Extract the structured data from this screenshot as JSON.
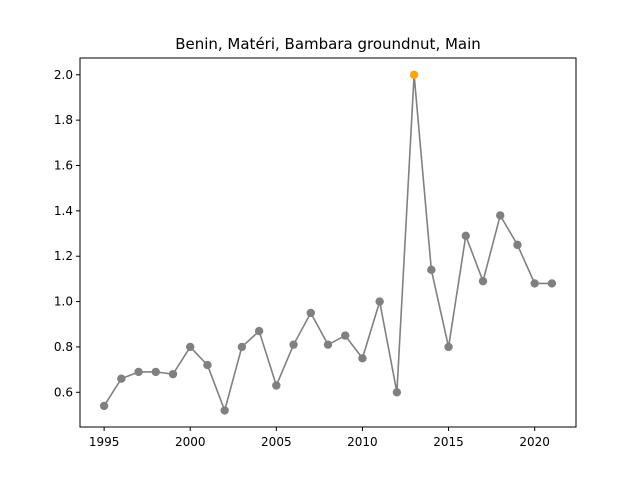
{
  "chart_data": {
    "type": "line",
    "title": "Benin, Matéri, Bambara groundnut, Main",
    "xlabel": "",
    "ylabel": "",
    "xlim": [
      1993.6,
      2022.4
    ],
    "ylim": [
      0.447,
      2.074
    ],
    "xticks": [
      1995,
      2000,
      2005,
      2010,
      2015,
      2020
    ],
    "yticks": [
      0.6,
      0.8,
      1.0,
      1.2,
      1.4,
      1.6,
      1.8,
      2.0
    ],
    "xtick_labels": [
      "1995",
      "2000",
      "2005",
      "2010",
      "2015",
      "2020"
    ],
    "ytick_labels": [
      "0.6",
      "0.8",
      "1.0",
      "1.2",
      "1.4",
      "1.6",
      "1.8",
      "2.0"
    ],
    "grid": false,
    "line_color": "#808080",
    "marker_color": "#808080",
    "highlight_color": "#ffa500",
    "highlight_year": 2013,
    "x": [
      1995,
      1996,
      1997,
      1998,
      1999,
      2000,
      2001,
      2002,
      2003,
      2004,
      2005,
      2006,
      2007,
      2008,
      2009,
      2010,
      2011,
      2012,
      2013,
      2014,
      2015,
      2016,
      2017,
      2018,
      2019,
      2020,
      2021
    ],
    "values": [
      0.54,
      0.66,
      0.69,
      0.69,
      0.68,
      0.8,
      0.72,
      0.52,
      0.8,
      0.87,
      0.63,
      0.81,
      0.95,
      0.81,
      0.85,
      0.75,
      1.0,
      0.6,
      2.0,
      1.14,
      0.8,
      1.29,
      1.09,
      1.38,
      1.25,
      1.08,
      1.08
    ]
  }
}
